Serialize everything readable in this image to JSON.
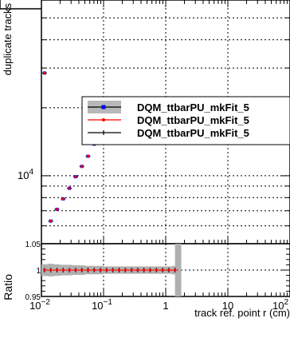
{
  "chart_data": [
    {
      "type": "scatter",
      "panel": "main",
      "ylabel": "duplicate tracks",
      "xscale": "log",
      "yscale": "log",
      "xlim": [
        0.01,
        100
      ],
      "ylim": [
        5000,
        60000
      ],
      "grid": true,
      "y_tick_labels": [
        {
          "base": "10",
          "exp": "4",
          "value": 10000
        }
      ],
      "legend": {
        "placement": "top-right",
        "entries": [
          {
            "label": "DQM_ttbarPU_mkFit_5",
            "color": "#0000ff",
            "style": "band"
          },
          {
            "label": "DQM_ttbarPU_mkFit_5",
            "color": "#ff0000",
            "style": "line"
          },
          {
            "label": "DQM_ttbarPU_mkFit_5",
            "color": "#000000",
            "style": "line"
          }
        ]
      },
      "series": [
        {
          "color": "#ff0000",
          "x": [
            0.0112,
            0.0141,
            0.0178,
            0.0224,
            0.0282,
            0.0355,
            0.0447,
            0.0562,
            0.0708,
            0.0891,
            0.112,
            0.141,
            0.178,
            1.58
          ],
          "y": [
            28500,
            6300,
            7100,
            7900,
            8800,
            9900,
            11000,
            12200,
            13800,
            15300,
            17200,
            21800,
            21500,
            15500
          ]
        }
      ]
    },
    {
      "type": "scatter",
      "panel": "ratio",
      "ylabel": "Ratio",
      "xlabel": "track ref. point r (cm)",
      "xscale": "log",
      "xlim": [
        0.01,
        100
      ],
      "ylim": [
        0.95,
        1.05
      ],
      "grid": true,
      "x_tick_labels": [
        {
          "base": "10",
          "exp": "−2",
          "value": 0.01
        },
        {
          "base": "10",
          "exp": "−1",
          "value": 0.1
        },
        {
          "base": "1",
          "exp": "",
          "value": 1
        },
        {
          "base": "10",
          "exp": "",
          "value": 10
        },
        {
          "base": "10",
          "exp": "2",
          "value": 100
        }
      ],
      "y_tick_labels": [
        {
          "text": "0.95",
          "value": 0.95
        },
        {
          "text": "1",
          "value": 1.0
        },
        {
          "text": "1.05",
          "value": 1.05
        }
      ],
      "ratio_line": {
        "color": "#ff0000",
        "x_from": 0.0112,
        "x_to": 1.58,
        "value": 1.0
      },
      "band": {
        "color": "#b0b0b0",
        "x": [
          0.0112,
          0.0141,
          0.0178,
          0.0224,
          0.0282,
          0.0355,
          0.0447,
          0.0562,
          0.0708,
          0.0891,
          0.112,
          0.141,
          0.178,
          0.224,
          0.282,
          0.355,
          0.447,
          0.562,
          0.708,
          0.891,
          1.12,
          1.41
        ],
        "half_width": [
          0.011,
          0.012,
          0.011,
          0.01,
          0.01,
          0.009,
          0.009,
          0.008,
          0.008,
          0.008,
          0.007,
          0.007,
          0.007,
          0.007,
          0.007,
          0.007,
          0.007,
          0.007,
          0.007,
          0.007,
          0.007,
          0.008
        ]
      },
      "last_bin_band": {
        "x_from": 1.41,
        "x_to": 1.78
      }
    }
  ]
}
